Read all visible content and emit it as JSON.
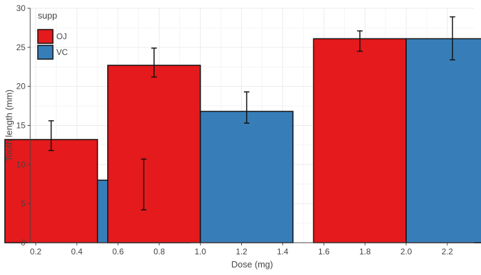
{
  "chart_data": {
    "type": "bar",
    "xlabel": "Dose (mg)",
    "ylabel": "Tooth length (mm)",
    "xlim": [
      0.2,
      2.3
    ],
    "ylim": [
      0,
      30
    ],
    "x_ticks": [
      "0.2",
      "0.4",
      "0.6",
      "0.8",
      "1.0",
      "1.2",
      "1.4",
      "1.6",
      "1.8",
      "2.0",
      "2.2"
    ],
    "x_tick_values": [
      0.2,
      0.4,
      0.6,
      0.8,
      1.0,
      1.2,
      1.4,
      1.6,
      1.8,
      2.0,
      2.2
    ],
    "y_ticks": [
      "0",
      "5",
      "10",
      "15",
      "20",
      "25",
      "30"
    ],
    "y_tick_values": [
      0,
      5,
      10,
      15,
      20,
      25,
      30
    ],
    "grid": true,
    "legend": {
      "title": "supp",
      "position": "top-left"
    },
    "dose": [
      0.5,
      1.0,
      2.0
    ],
    "bar_width": 0.45,
    "series": [
      {
        "name": "OJ",
        "color": "#e41a1c",
        "values": [
          13.2,
          22.7,
          26.1
        ],
        "err_low": [
          11.8,
          21.2,
          24.5
        ],
        "err_high": [
          15.6,
          24.9,
          27.1
        ]
      },
      {
        "name": "VC",
        "color": "#377eb8",
        "values": [
          8.0,
          16.8,
          26.1
        ],
        "err_low": [
          4.2,
          15.3,
          23.4
        ],
        "err_high": [
          10.7,
          19.3,
          28.9
        ]
      }
    ]
  }
}
